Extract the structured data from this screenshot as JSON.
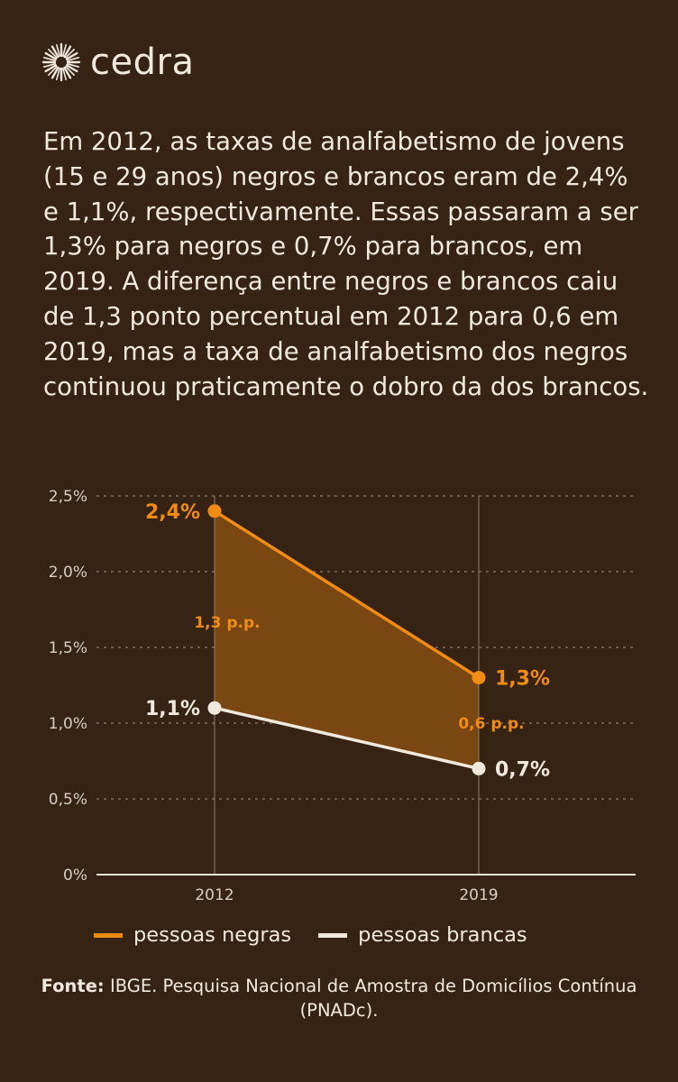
{
  "brand": {
    "name": "cedra"
  },
  "intro_text": "Em 2012, as taxas de analfabetismo de jovens (15 e 29 anos) negros e brancos eram de 2,4% e 1,1%, respectivamente. Essas passaram a ser 1,3% para negros e 0,7% para brancos, em 2019. A diferença entre negros e brancos caiu de 1,3 ponto percentual em 2012 para 0,6 em 2019, mas a taxa de analfabetismo dos negros continuou praticamente o dobro da dos brancos.",
  "colors": {
    "background": "#362314",
    "negras": "#f08c14",
    "brancas": "#f1e9dc",
    "gap_fill": "#7a4712"
  },
  "chart_data": {
    "type": "line",
    "categories": [
      "2012",
      "2019"
    ],
    "ylim": [
      0,
      2.5
    ],
    "yticks": [
      0,
      0.5,
      1.0,
      1.5,
      2.0,
      2.5
    ],
    "ytick_labels": [
      "0%",
      "0,5%",
      "1,0%",
      "1,5%",
      "2,0%",
      "2,5%"
    ],
    "grid": true,
    "series": [
      {
        "name": "pessoas negras",
        "key": "negras",
        "values": [
          2.4,
          1.3
        ],
        "labels": [
          "2,4%",
          "1,3%"
        ]
      },
      {
        "name": "pessoas brancas",
        "key": "brancas",
        "values": [
          1.1,
          0.7
        ],
        "labels": [
          "1,1%",
          "0,7%"
        ]
      }
    ],
    "gap_labels": [
      "1,3 p.p.",
      "0,6 p.p."
    ],
    "legend_position": "bottom"
  },
  "source": {
    "label": "Fonte:",
    "text": "IBGE. Pesquisa Nacional de Amostra de Domicílios Contínua (PNADc)."
  }
}
